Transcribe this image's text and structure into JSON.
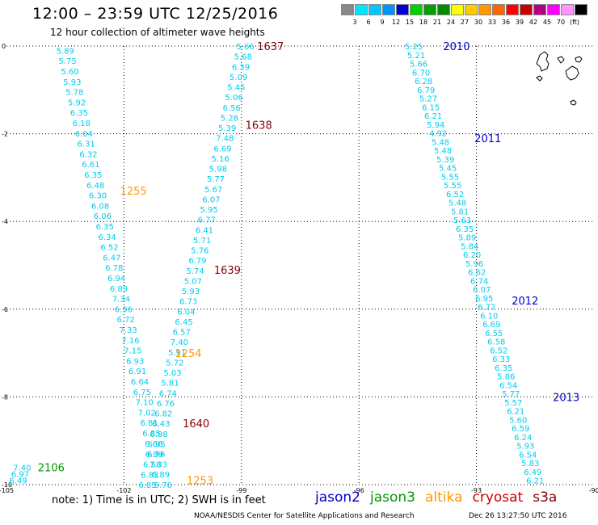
{
  "title": "12:00  –  23:59  UTC  12/25/2016",
  "subtitle": "12 hour collection of altimeter wave heights",
  "scale": {
    "colors": [
      "#888888",
      "#00e6ff",
      "#00c8ff",
      "#0096ff",
      "#0000d8",
      "#00d200",
      "#00a000",
      "#008c00",
      "#ffff00",
      "#ffcc00",
      "#ff9900",
      "#ff6600",
      "#ff0000",
      "#c80000",
      "#b40082",
      "#ff00ff",
      "#ff96ff",
      "#000000"
    ],
    "labels": [
      "3",
      "6",
      "9",
      "12",
      "15",
      "18",
      "21",
      "24",
      "27",
      "30",
      "33",
      "36",
      "39",
      "42",
      "45",
      "70",
      "(ft)"
    ]
  },
  "note": "note:  1) Time is in UTC;  2) SWH is in feet",
  "legend": [
    {
      "name": "jason2",
      "color": "#0000cc"
    },
    {
      "name": "jason3",
      "color": "#009900"
    },
    {
      "name": "altika",
      "color": "#ff9900"
    },
    {
      "name": "cryosat",
      "color": "#cc0000"
    },
    {
      "name": "s3a",
      "color": "#880000"
    }
  ],
  "credit": "NOAA/NESDIS Center for Satellite Applications and Research",
  "timestamp": "Dec 26 13:27:50 UTC 2016",
  "chart_data": {
    "type": "scatter",
    "xlim": [
      -105,
      -90
    ],
    "ylim": [
      -10,
      0
    ],
    "x_ticks": [
      "-105",
      "-102",
      "-99",
      "-96",
      "-93",
      "-90"
    ],
    "y_ticks": [
      "0",
      "-2",
      "-4",
      "-6",
      "-8",
      "-10"
    ],
    "grid": true,
    "colors": {
      "swh": "#00ccee",
      "jason2": "#0000cc",
      "jason3": "#009900",
      "altika": "#ff9900",
      "cryosat": "#cc0000",
      "s3a": "#880000"
    },
    "tracks": [
      {
        "lon_start": -103.5,
        "lat_start": -0.1,
        "lon_end": -101.0,
        "lat_end": -10.0,
        "values": [
          "5.89",
          "5.75",
          "5.60",
          "5.93",
          "5.78",
          "5.92",
          "6.35",
          "6.18",
          "6.04",
          "6.31",
          "6.32",
          "6.61",
          "6.35",
          "6.48",
          "6.30",
          "6.08",
          "6.06",
          "6.35",
          "6.34",
          "6.52",
          "6.47",
          "6.78",
          "6.94",
          "6.89",
          "7.34",
          "6.96",
          "6.72",
          "7.33",
          "7.16",
          "7.15",
          "6.93",
          "6.91",
          "6.64",
          "6.75",
          "7.10",
          "7.02",
          "6.81",
          "6.85",
          "6.66",
          "6.56",
          "7.33",
          "6.89",
          "5.70"
        ]
      },
      {
        "lon_start": -98.9,
        "lat_start": 0.0,
        "lon_end": -101.4,
        "lat_end": -10.0,
        "values": [
          "5.66",
          "5.68",
          "6.39",
          "5.09",
          "5.45",
          "5.06",
          "6.56",
          "5.28",
          "5.39",
          "7.48",
          "6.69",
          "5.16",
          "5.98",
          "5.77",
          "5.67",
          "6.07",
          "5.95",
          "6.77",
          "6.41",
          "5.71",
          "5.76",
          "6.79",
          "5.74",
          "5.07",
          "5.93",
          "6.73",
          "6.04",
          "6.45",
          "6.57",
          "7.40",
          "5.91",
          "5.72",
          "5.03",
          "5.81",
          "6.74",
          "6.76",
          "6.82",
          "6.43",
          "6.98",
          "6.95",
          "6.99",
          "6.58",
          "6.83",
          "6.85"
        ]
      },
      {
        "lon_start": -94.6,
        "lat_start": 0.0,
        "lon_end": -91.5,
        "lat_end": -9.9,
        "values": [
          "5.25",
          "5.21",
          "5.66",
          "6.70",
          "6.28",
          "6.79",
          "5.27",
          "6.15",
          "6.21",
          "5.94",
          "4.92",
          "5.48",
          "5.48",
          "5.39",
          "5.45",
          "5.55",
          "5.55",
          "6.52",
          "5.48",
          "5.81",
          "5.63",
          "6.35",
          "5.89",
          "5.84",
          "6.20",
          "5.96",
          "6.62",
          "6.74",
          "6.07",
          "6.95",
          "6.72",
          "6.10",
          "6.69",
          "6.55",
          "6.58",
          "6.52",
          "6.33",
          "6.35",
          "5.86",
          "6.54",
          "5.77",
          "5.57",
          "6.21",
          "5.60",
          "6.59",
          "6.24",
          "5.93",
          "6.54",
          "5.83",
          "6.49",
          "6.21"
        ]
      },
      {
        "lon_start": -104.6,
        "lat_start": -9.6,
        "lon_end": -104.7,
        "lat_end": -9.9,
        "values": [
          "7.40",
          "6.97",
          "6.49"
        ]
      }
    ],
    "annotations": [
      {
        "text": "1637",
        "lon": -98.6,
        "lat": 0.0,
        "sat": "s3a"
      },
      {
        "text": "1638",
        "lon": -98.9,
        "lat": -1.8,
        "sat": "s3a"
      },
      {
        "text": "1639",
        "lon": -99.7,
        "lat": -5.1,
        "sat": "s3a"
      },
      {
        "text": "1640",
        "lon": -100.5,
        "lat": -8.6,
        "sat": "s3a"
      },
      {
        "text": "1255",
        "lon": -102.1,
        "lat": -3.3,
        "sat": "altika"
      },
      {
        "text": "1254",
        "lon": -100.7,
        "lat": -7.0,
        "sat": "altika"
      },
      {
        "text": "1253",
        "lon": -100.4,
        "lat": -9.9,
        "sat": "altika"
      },
      {
        "text": "2010",
        "lon": -93.85,
        "lat": 0.0,
        "sat": "jason2"
      },
      {
        "text": "2011",
        "lon": -93.05,
        "lat": -2.1,
        "sat": "jason2"
      },
      {
        "text": "2012",
        "lon": -92.1,
        "lat": -5.8,
        "sat": "jason2"
      },
      {
        "text": "2013",
        "lon": -91.05,
        "lat": -8.0,
        "sat": "jason2"
      },
      {
        "text": "2106",
        "lon": -104.2,
        "lat": -9.6,
        "sat": "jason3"
      }
    ]
  }
}
